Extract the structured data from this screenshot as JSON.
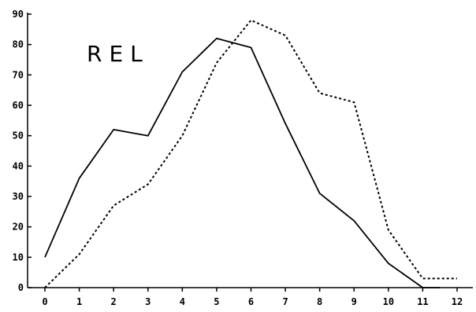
{
  "chart_data": {
    "type": "line",
    "title": "REL",
    "xlabel": "",
    "ylabel": "",
    "xlim": [
      0,
      12
    ],
    "ylim": [
      0,
      90
    ],
    "x_ticks": [
      0,
      1,
      2,
      3,
      4,
      5,
      6,
      7,
      8,
      9,
      10,
      11,
      12
    ],
    "y_ticks": [
      0,
      10,
      20,
      30,
      40,
      50,
      60,
      70,
      80,
      90
    ],
    "grid": false,
    "legend": "none",
    "series": [
      {
        "style": "solid",
        "color": "#000000",
        "x": [
          0,
          1,
          2,
          3,
          4,
          5,
          6,
          7,
          8,
          9,
          10,
          11,
          11.5
        ],
        "y": [
          10,
          36,
          52,
          50,
          71,
          82,
          79,
          54,
          31,
          22,
          8,
          0,
          0
        ]
      },
      {
        "style": "dotted",
        "color": "#000000",
        "x": [
          0,
          1,
          2,
          3,
          4,
          5,
          6,
          7,
          8,
          9,
          10,
          11,
          12
        ],
        "y": [
          0,
          11,
          27,
          34,
          50,
          74,
          88,
          83,
          64,
          61,
          19,
          3,
          3
        ]
      }
    ]
  }
}
